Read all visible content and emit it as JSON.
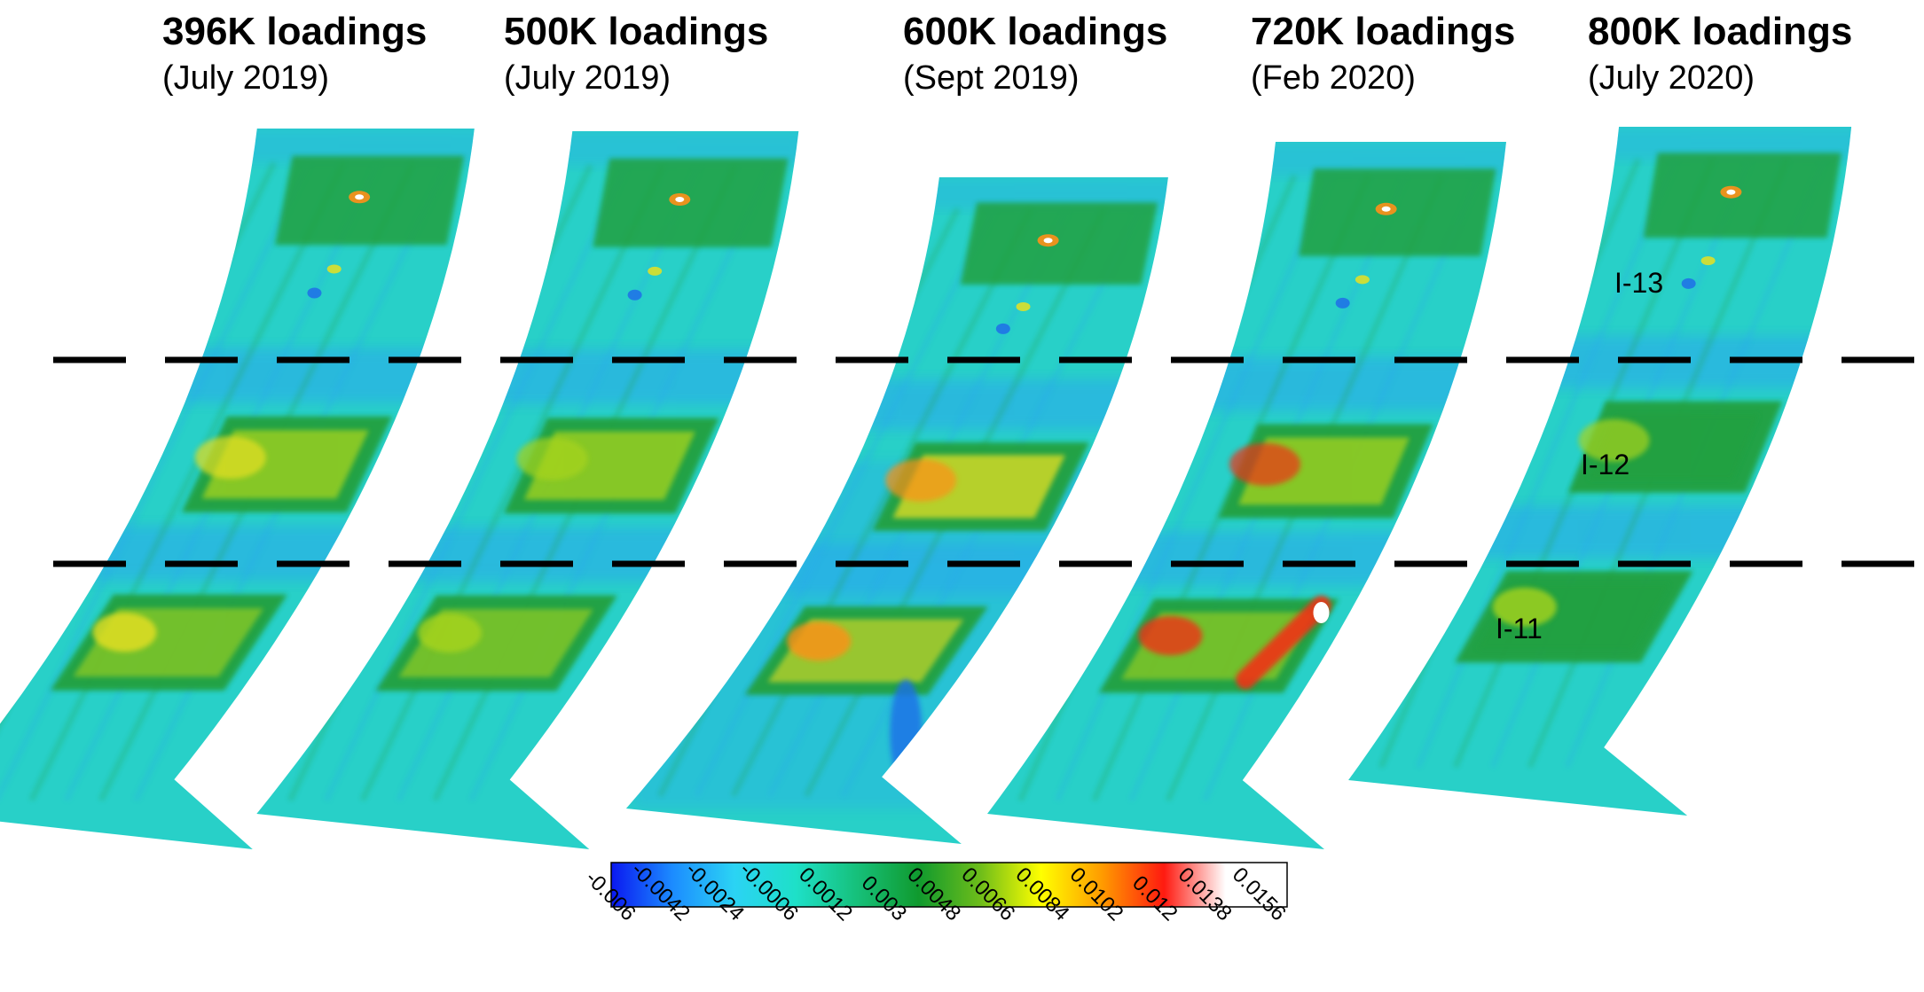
{
  "panels": [
    {
      "title": "396K loadings",
      "date": "(July 2019)"
    },
    {
      "title": "500K loadings",
      "date": "(July 2019)"
    },
    {
      "title": "600K loadings",
      "date": "(Sept 2019)"
    },
    {
      "title": "720K loadings",
      "date": "(Feb 2020)"
    },
    {
      "title": "800K loadings",
      "date": "(July 2020)"
    }
  ],
  "zones": [
    "I-13",
    "I-12",
    "I-11"
  ],
  "colorbar": {
    "ticks": [
      "-0.006",
      "-0.0042",
      "-0.0024",
      "-0.0006",
      "0.0012",
      "0.003",
      "0.0048",
      "0.0066",
      "0.0084",
      "0.0102",
      "0.012",
      "0.0138",
      "0.0156"
    ],
    "colors": [
      "#0a18f0",
      "#1c8cff",
      "#2bd3f4",
      "#1ee0c8",
      "#16c07a",
      "#109a2e",
      "#6cbc1a",
      "#ffff00",
      "#ff9a00",
      "#ff1a10",
      "#ffffff",
      "#ffffff"
    ]
  },
  "palette": {
    "base": "#28d0c8",
    "cool": "#2aa8ee",
    "deep": "#1e6ee8",
    "green": "#22a040",
    "lime": "#a8d41c",
    "yellow": "#e8e020",
    "orange": "#ff9018",
    "red": "#f03018",
    "white": "#ffffff"
  }
}
